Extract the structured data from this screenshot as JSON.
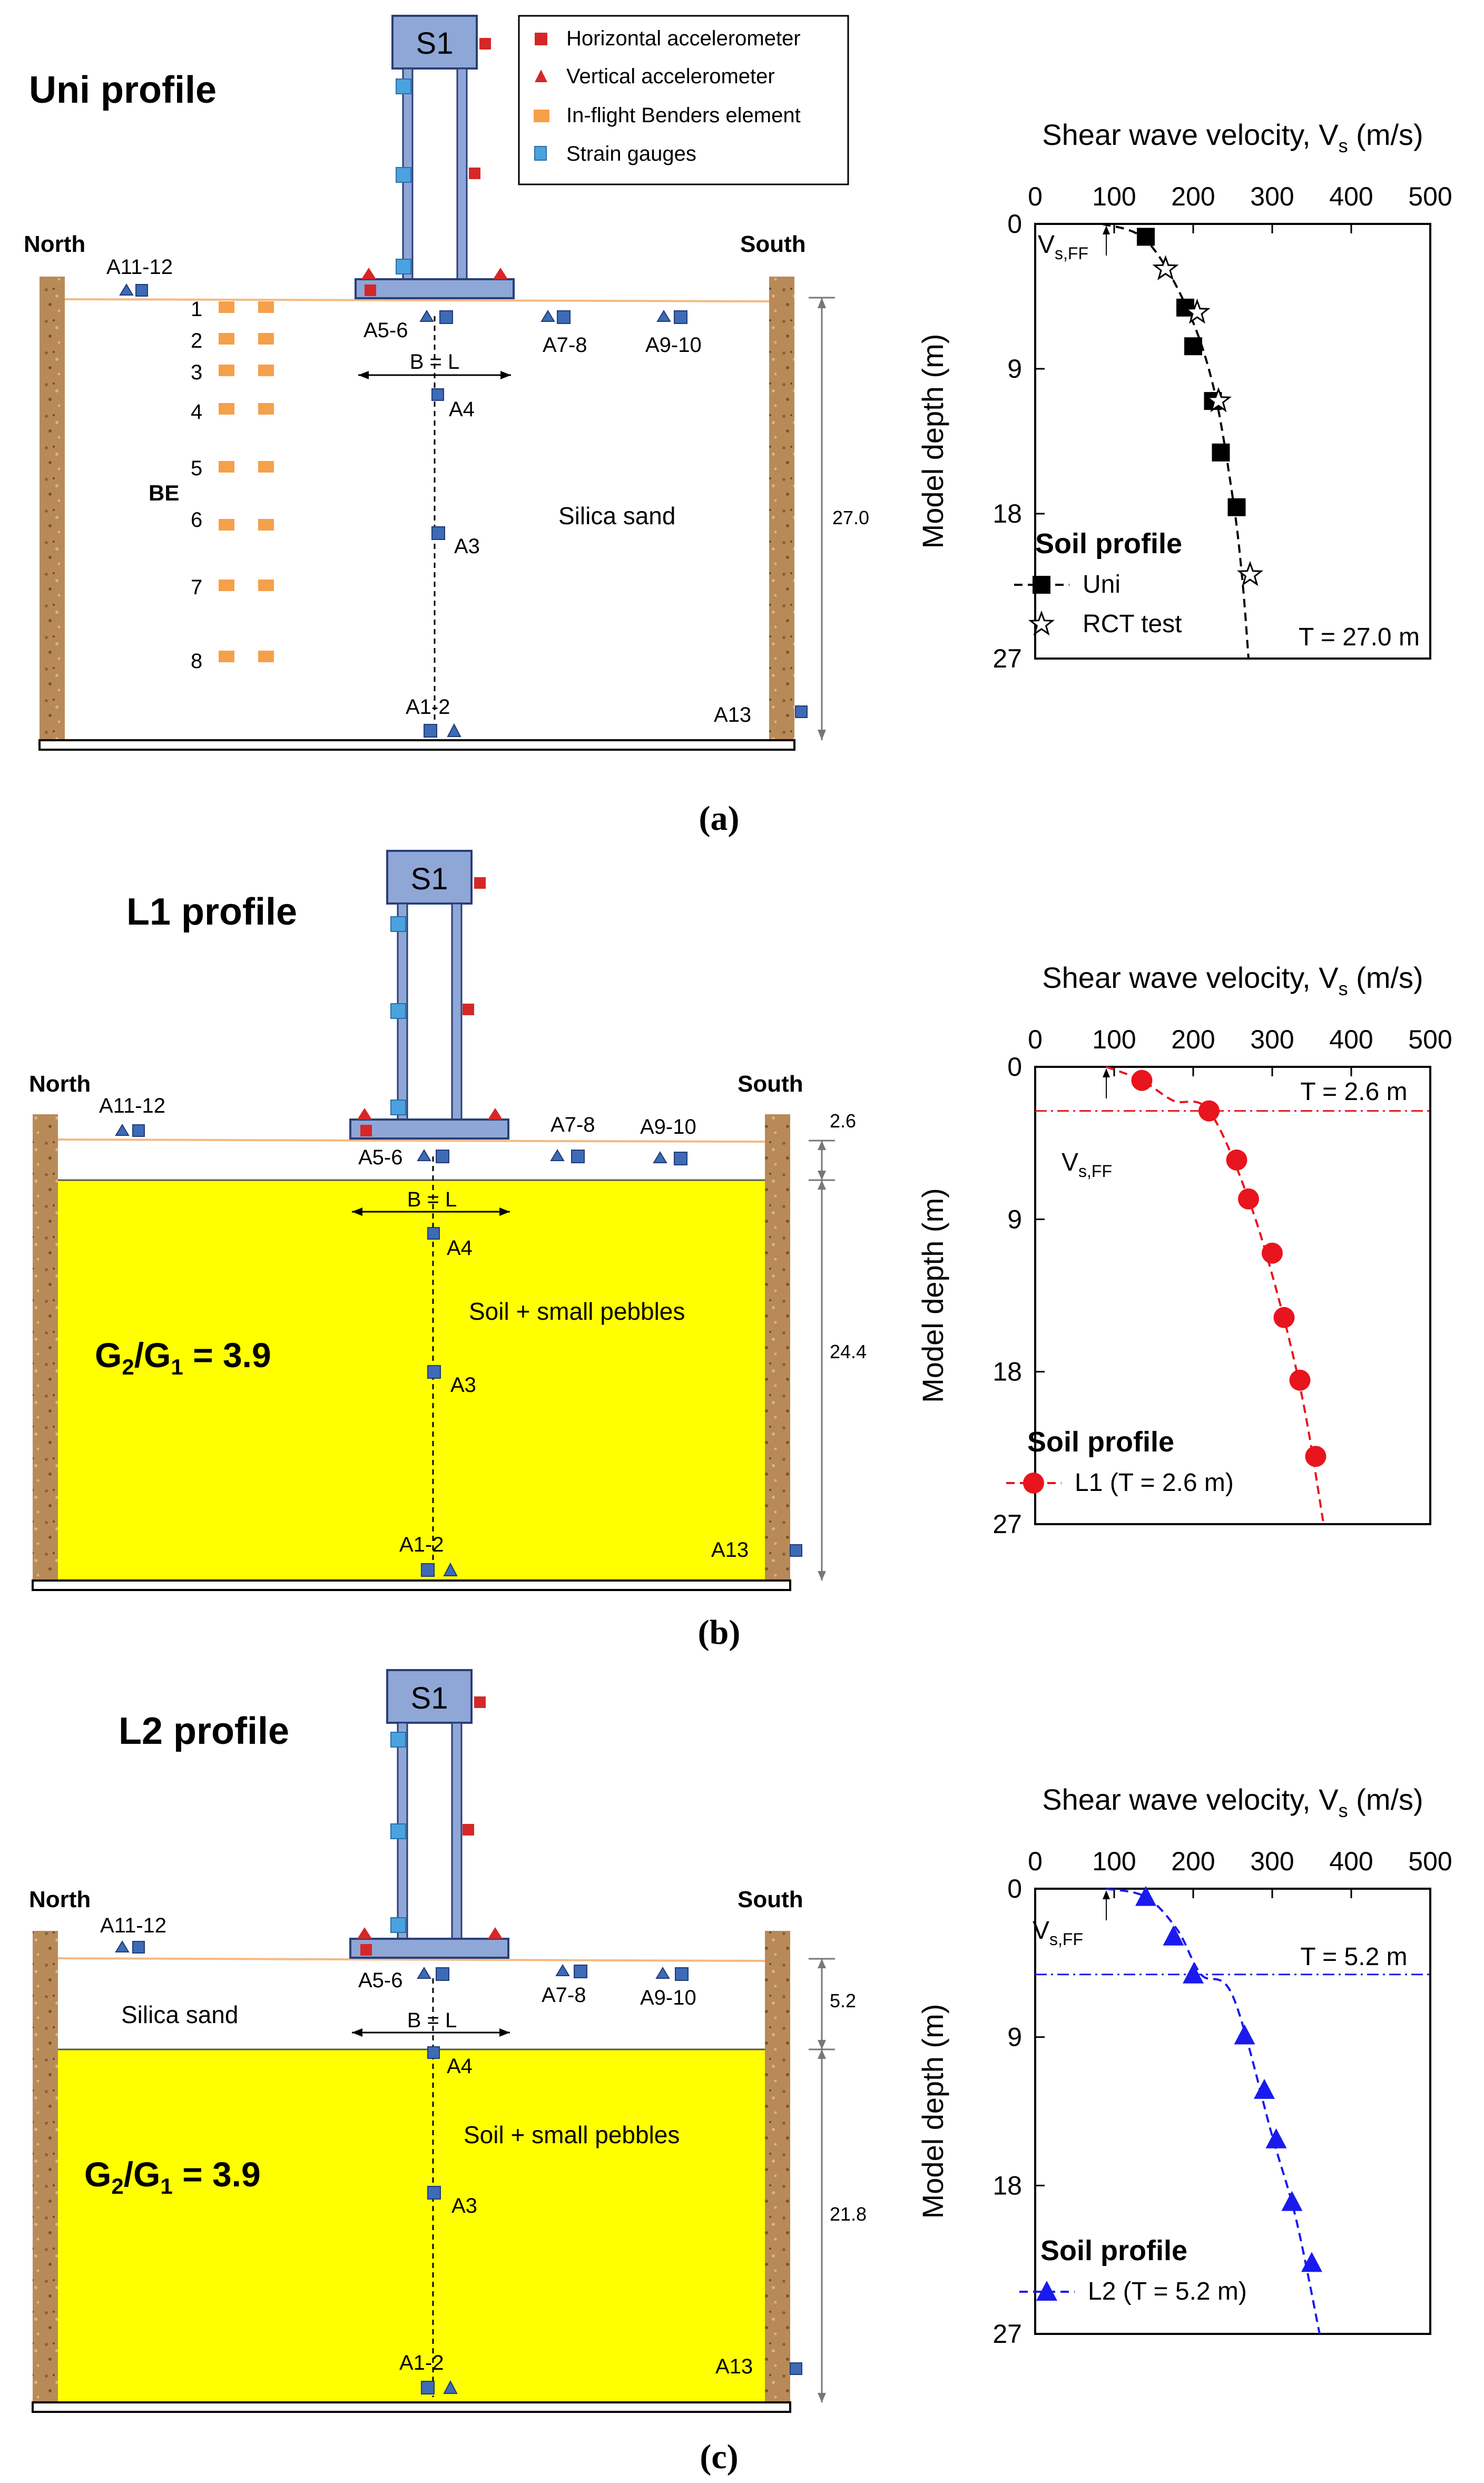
{
  "legend": {
    "horizontal": "Horizontal accelerometer",
    "vertical": "Vertical accelerometer",
    "benders": "In-flight Benders element",
    "strain": "Strain gauges"
  },
  "labels": {
    "structure": "S1",
    "north": "North",
    "south": "South",
    "footing": "B = L",
    "silica_sand": "Silica sand",
    "soil_pebbles": "Soil + small pebbles",
    "be": "BE",
    "ratio_main": "G",
    "ratio_sub2": "2",
    "ratio_mid": "/G",
    "ratio_sub1": "1",
    "ratio_tail": " = 3.9",
    "sensors": {
      "a11_12": "A11-12",
      "a5_6": "A5-6",
      "a7_8": "A7-8",
      "a9_10": "A9-10",
      "a4": "A4",
      "a3": "A3",
      "a1_2": "A1-2",
      "a13": "A13"
    },
    "be_numbers": [
      "1",
      "2",
      "3",
      "4",
      "5",
      "6",
      "7",
      "8"
    ]
  },
  "panels": [
    {
      "id": "a",
      "profile_title": "Uni profile",
      "caption": "(a)",
      "depth_labels": [
        "27.0"
      ]
    },
    {
      "id": "b",
      "profile_title": "L1 profile",
      "caption": "(b)",
      "depth_labels": [
        "2.6",
        "24.4"
      ]
    },
    {
      "id": "c",
      "profile_title": "L2 profile",
      "caption": "(c)",
      "depth_labels": [
        "5.2",
        "21.8"
      ]
    }
  ],
  "chart_data": [
    {
      "type": "scatter",
      "title": "Shear wave velocity, V",
      "title_sub": "s",
      "title_units": " (m/s)",
      "xlabel": "Shear wave velocity, Vs (m/s)",
      "ylabel": "Model depth (m)",
      "xlim": [
        0,
        500
      ],
      "ylim": [
        0,
        27
      ],
      "x_ticks": [
        "0",
        "100",
        "200",
        "300",
        "400",
        "500"
      ],
      "y_ticks": [
        "0",
        "9",
        "18",
        "27"
      ],
      "vsff_label": "V",
      "vsff_sub": "s,FF",
      "vsff_value": 90,
      "legend_title": "Soil profile",
      "threshold_label": "T = 27.0 m",
      "series": [
        {
          "name": "Uni",
          "marker": "square",
          "color": "#000000",
          "x": [
            140,
            190,
            200,
            225,
            235,
            255
          ],
          "y": [
            0.8,
            5.2,
            7.6,
            11.0,
            14.2,
            17.6
          ]
        },
        {
          "name": "RCT test",
          "marker": "star",
          "color": "#000000",
          "x": [
            165,
            205,
            232,
            272
          ],
          "y": [
            2.8,
            5.5,
            11.0,
            21.8
          ]
        }
      ],
      "fit": {
        "x": [
          85,
          140,
          190,
          225,
          250,
          262,
          270
        ],
        "y": [
          0,
          1.0,
          5.0,
          10.0,
          17.0,
          22.0,
          27.0
        ],
        "color": "#000000"
      }
    },
    {
      "type": "scatter",
      "title": "Shear wave velocity, V",
      "title_sub": "s",
      "title_units": " (m/s)",
      "xlabel": "Shear wave velocity, Vs (m/s)",
      "ylabel": "Model depth (m)",
      "xlim": [
        0,
        500
      ],
      "ylim": [
        0,
        27
      ],
      "x_ticks": [
        "0",
        "100",
        "200",
        "300",
        "400",
        "500"
      ],
      "y_ticks": [
        "0",
        "9",
        "18",
        "27"
      ],
      "vsff_label": "V",
      "vsff_sub": "s,FF",
      "vsff_value": 90,
      "legend_title": "Soil profile",
      "threshold_label": "T = 2.6 m",
      "threshold_depth": 2.6,
      "series": [
        {
          "name": "L1 (T = 2.6 m)",
          "marker": "circle",
          "color": "#e8141e",
          "x": [
            135,
            220,
            255,
            270,
            300,
            315,
            335,
            355
          ],
          "y": [
            0.8,
            2.6,
            5.5,
            7.8,
            11.0,
            14.8,
            18.5,
            23.0
          ]
        }
      ],
      "fit": {
        "x": [
          90,
          135,
          175,
          220,
          270,
          310,
          340,
          365
        ],
        "y": [
          0,
          0.8,
          2.0,
          2.6,
          7.8,
          14.0,
          20.0,
          27.0
        ],
        "color": "#e8141e"
      }
    },
    {
      "type": "scatter",
      "title": "Shear wave velocity, V",
      "title_sub": "s",
      "title_units": " (m/s)",
      "xlabel": "Shear wave velocity, Vs (m/s)",
      "ylabel": "Model depth (m)",
      "xlim": [
        0,
        500
      ],
      "ylim": [
        0,
        27
      ],
      "x_ticks": [
        "0",
        "100",
        "200",
        "300",
        "400",
        "500"
      ],
      "y_ticks": [
        "0",
        "9",
        "18",
        "27"
      ],
      "vsff_label": "V",
      "vsff_sub": "s,FF",
      "vsff_value": 90,
      "legend_title": "Soil profile",
      "threshold_label": "T = 5.2 m",
      "threshold_depth": 5.2,
      "series": [
        {
          "name": "L2 (T = 5.2 m)",
          "marker": "triangle",
          "color": "#1a1aee",
          "x": [
            140,
            175,
            200,
            265,
            290,
            305,
            325,
            350
          ],
          "y": [
            0.5,
            2.9,
            5.2,
            8.9,
            12.2,
            15.2,
            19.0,
            22.7
          ]
        }
      ],
      "fit": {
        "x": [
          90,
          140,
          180,
          210,
          250,
          300,
          330,
          360
        ],
        "y": [
          0,
          0.5,
          2.5,
          5.2,
          6.5,
          15.0,
          20.0,
          27.0
        ],
        "color": "#1a1aee"
      }
    }
  ],
  "colors": {
    "sensor_blue": "#3d6bb5",
    "sensor_red": "#d62728",
    "structure": "#8fa7d6",
    "yellow": "#ffff00",
    "orange": "#f5a04a",
    "surface": "#f5b982"
  }
}
